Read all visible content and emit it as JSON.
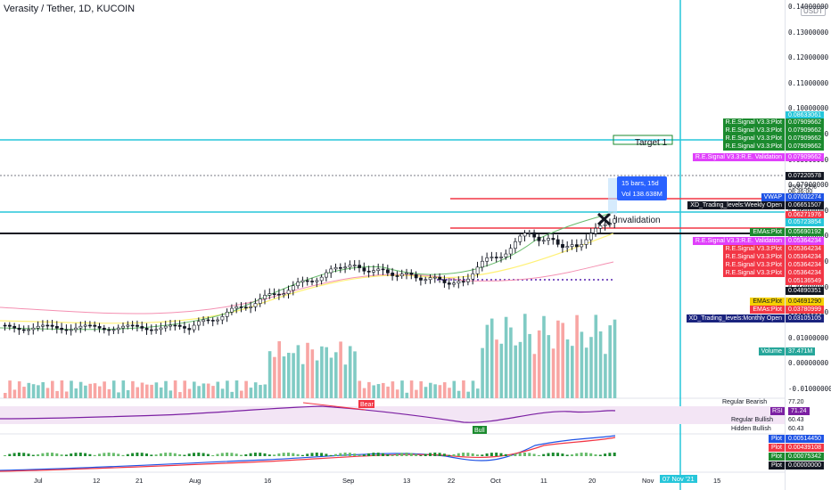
{
  "title": "Verasity / Tether, 1D, KUCOIN",
  "currency_badge": "USDT",
  "price_axis": [
    "0.14000000",
    "0.13000000",
    "0.12000000",
    "0.11000000",
    "0.10000000",
    "0.09000000",
    "0.08000000",
    "0.07000000",
    "0.06000000",
    "0.05000000",
    "0.04000000",
    "0.03000000",
    "0.02000000",
    "0.01000000",
    "0.00000000",
    "-0.01000000"
  ],
  "value_tags": [
    {
      "label": "",
      "value": "0.08633061",
      "color": "#26c6da"
    },
    {
      "label": "R.E.Signal V3.3:Plot",
      "value": "0.07909662",
      "color": "#1b8a2e"
    },
    {
      "label": "R.E.Signal V3.3:Plot",
      "value": "0.07909662",
      "color": "#1b8a2e"
    },
    {
      "label": "R.E.Signal V3.3:Plot",
      "value": "0.07909662",
      "color": "#1b8a2e"
    },
    {
      "label": "R.E.Signal V3.3:Plot",
      "value": "0.07909662",
      "color": "#1b8a2e"
    },
    {
      "label": "R.E.Signal V3.3:R.E. Validation",
      "value": "0.07909662",
      "color": "#e040fb"
    },
    {
      "label": "",
      "value": "0.07220578",
      "color": "#131722",
      "extra": [
        "+505.22%",
        "08:36:00"
      ]
    },
    {
      "label": "VWAP",
      "value": "0.07002274",
      "color": "#1e53e5"
    },
    {
      "label": "XD_Trading_levels:Weekly Open",
      "value": "0.06651507",
      "color": "#131722"
    },
    {
      "label": "",
      "value": "0.06271976",
      "color": "#f23645"
    },
    {
      "label": "",
      "value": "0.05723854",
      "color": "#26c6da"
    },
    {
      "label": "EMAs:Plot",
      "value": "0.05690192",
      "color": "#1b8a2e"
    },
    {
      "label": "R.E.Signal V3.3:R.E. Validation",
      "value": "0.05364234",
      "color": "#e040fb"
    },
    {
      "label": "R.E.Signal V3.3:Plot",
      "value": "0.05364234",
      "color": "#f23645"
    },
    {
      "label": "R.E.Signal V3.3:Plot",
      "value": "0.05364234",
      "color": "#f23645"
    },
    {
      "label": "R.E.Signal V3.3:Plot",
      "value": "0.05364234",
      "color": "#f23645"
    },
    {
      "label": "R.E.Signal V3.3:Plot",
      "value": "0.05364234",
      "color": "#f23645"
    },
    {
      "label": "",
      "value": "0.05136549",
      "color": "#f23645"
    },
    {
      "label": "",
      "value": "0.04890351",
      "color": "#131722"
    },
    {
      "label": "EMAs:Plot",
      "value": "0.04691290",
      "color": "#f5d000"
    },
    {
      "label": "EMAs:Plot",
      "value": "0.03780999",
      "color": "#f23645"
    },
    {
      "label": "XD_Trading_levels:Monthly Open",
      "value": "0.03105105",
      "color": "#1a237e"
    },
    {
      "label": "Volume",
      "value": "37.471M",
      "color": "#26a69a"
    }
  ],
  "annotations": {
    "target": "Target 1",
    "invalidation": "Invalidation",
    "measure_bars": "15 bars, 15d",
    "measure_change": "+505.22%",
    "measure_vol": "Vol 138.638M"
  },
  "rsi_panel": {
    "labels": [
      "Regular Bearish",
      "RSI",
      "Regular Bullish",
      "Hidden Bullish"
    ],
    "values": [
      "77.20",
      "71.24",
      "60.43",
      "60.43"
    ],
    "bear_tag": "Bear",
    "bull_tag": "Bull"
  },
  "macd_panel": {
    "tags": [
      {
        "label": "Plot",
        "value": "0.00514450",
        "color": "#1e53e5"
      },
      {
        "label": "Plot",
        "value": "0.00439108",
        "color": "#f23645"
      },
      {
        "label": "Plot",
        "value": "0.00075342",
        "color": "#1b8a2e"
      },
      {
        "label": "Plot",
        "value": "0.00000000",
        "color": "#131722"
      }
    ]
  },
  "time_axis": [
    "Jul",
    "12",
    "21",
    "Aug",
    "16",
    "Sep",
    "13",
    "22",
    "Oct",
    "11",
    "20",
    "Nov",
    "07 Nov '21",
    "15"
  ],
  "colors": {
    "up": "#26a69a",
    "down": "#ef5350",
    "cyan": "#26c6da",
    "red": "#f23645",
    "green": "#1b8a2e"
  }
}
